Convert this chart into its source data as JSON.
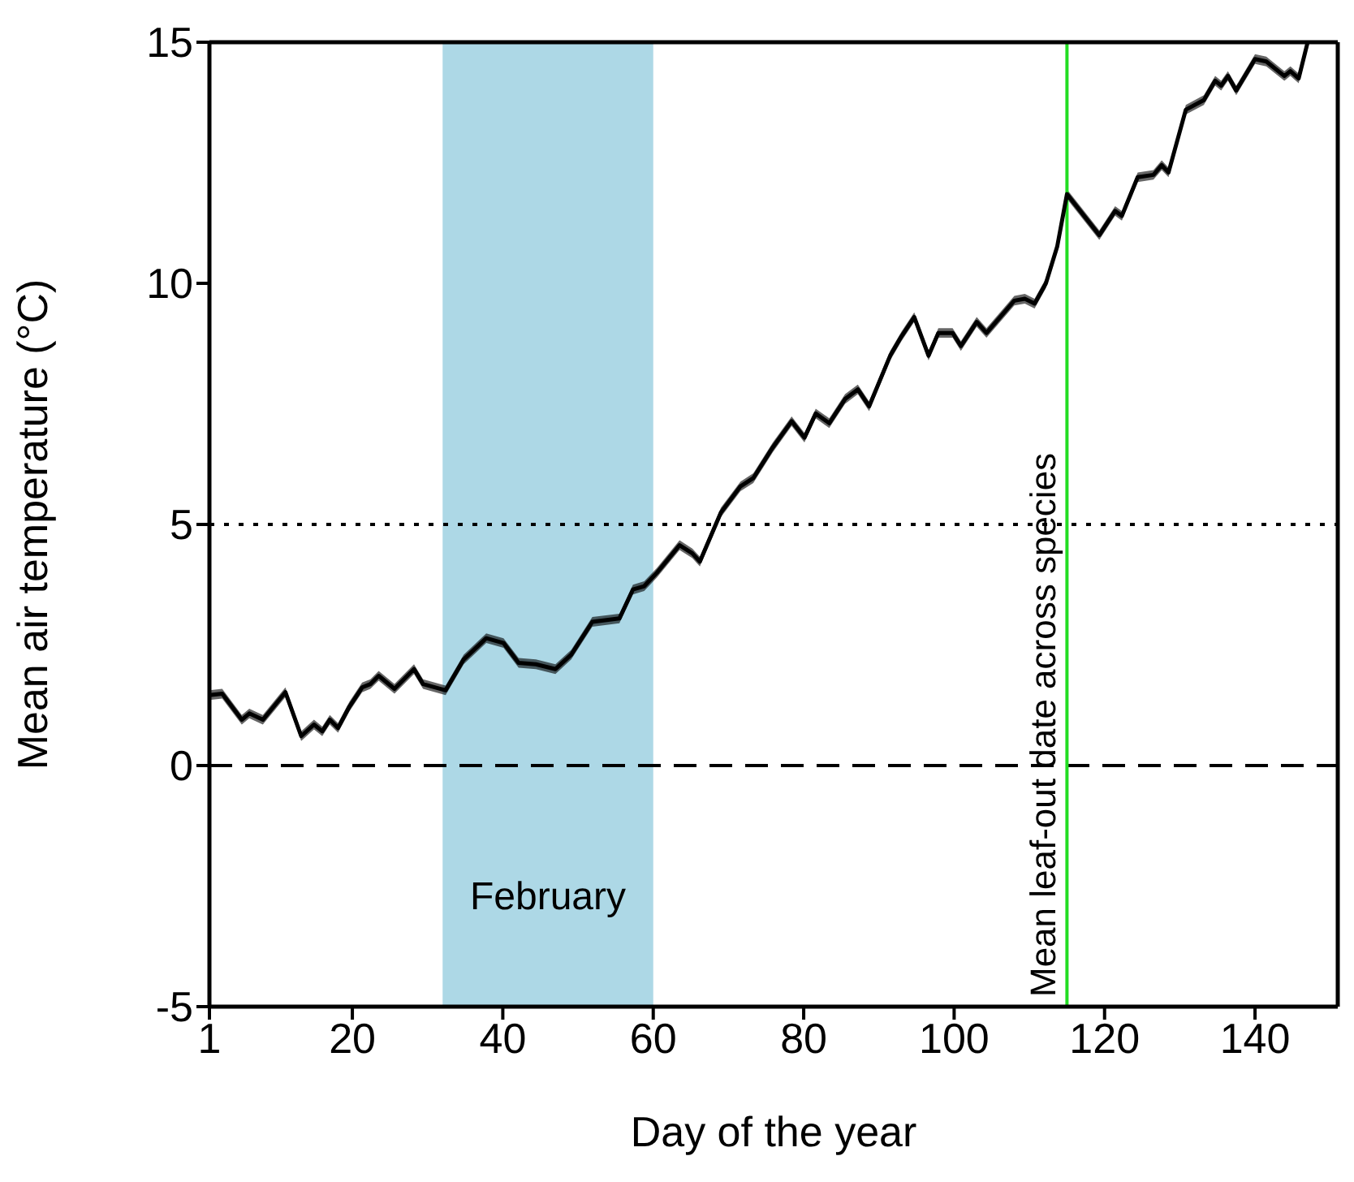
{
  "chart_data": {
    "type": "line",
    "xlabel": "Day of the year",
    "ylabel": "Mean air temperature (°C)",
    "x": [
      1,
      2.7,
      5.3,
      6.3,
      8.1,
      11.1,
      13.2,
      14.9,
      16,
      17,
      18.1,
      19.6,
      21.3,
      22.4,
      23.5,
      25.6,
      28.2,
      29.4,
      32.4,
      34.8,
      37.8,
      40.1,
      42.1,
      44.4,
      47,
      49.1,
      51.9,
      55.5,
      57.3,
      58.8,
      60.5,
      63.5,
      65.2,
      66.2,
      69,
      71.6,
      73.3,
      75.9,
      78.4,
      80.1,
      81.6,
      83.4,
      85.5,
      87.2,
      88.7,
      91.5,
      93,
      94.7,
      96.6,
      97.9,
      99.8,
      100.9,
      103,
      104.3,
      108,
      109.4,
      110.7,
      112.2,
      113.7,
      115,
      119.3,
      121.4,
      122.3,
      124.4,
      126.5,
      127.6,
      128.5,
      130.8,
      133.2,
      134.7,
      135.5,
      136.4,
      137.5,
      140,
      141.5,
      143.9,
      144.7,
      145.8,
      147
    ],
    "series": [
      {
        "color": "#000000",
        "line_style": "solid",
        "values": [
          1.46,
          1.49,
          0.95,
          1.08,
          0.95,
          1.52,
          0.61,
          0.85,
          0.71,
          0.95,
          0.78,
          1.22,
          1.62,
          1.69,
          1.86,
          1.59,
          2.0,
          1.69,
          1.56,
          2.2,
          2.64,
          2.54,
          2.13,
          2.1,
          2.0,
          2.3,
          2.98,
          3.05,
          3.65,
          3.72,
          4.0,
          4.57,
          4.4,
          4.23,
          5.25,
          5.79,
          5.96,
          6.6,
          7.14,
          6.8,
          7.3,
          7.1,
          7.6,
          7.8,
          7.45,
          8.5,
          8.9,
          9.3,
          8.5,
          8.97,
          8.97,
          8.7,
          9.2,
          8.97,
          9.64,
          9.68,
          9.58,
          10.0,
          10.76,
          11.85,
          11.0,
          11.5,
          11.4,
          12.2,
          12.25,
          12.45,
          12.3,
          13.6,
          13.8,
          14.2,
          14.1,
          14.3,
          14.0,
          14.65,
          14.6,
          14.3,
          14.4,
          14.25,
          15.0
        ],
        "lower": [
          1.36,
          1.39,
          0.85,
          0.98,
          0.85,
          1.42,
          0.51,
          0.75,
          0.61,
          0.85,
          0.68,
          1.12,
          1.52,
          1.59,
          1.76,
          1.49,
          1.9,
          1.59,
          1.46,
          2.1,
          2.54,
          2.44,
          2.03,
          2.0,
          1.9,
          2.2,
          2.88,
          2.95,
          3.55,
          3.62,
          3.9,
          4.47,
          4.3,
          4.13,
          5.15,
          5.69,
          5.86,
          6.5,
          7.04,
          6.7,
          7.2,
          7.0,
          7.5,
          7.7,
          7.35,
          8.4,
          8.8,
          9.2,
          8.4,
          8.87,
          8.87,
          8.6,
          9.1,
          8.87,
          9.54,
          9.58,
          9.48,
          9.9,
          10.66,
          11.75,
          10.9,
          11.4,
          11.3,
          12.1,
          12.15,
          12.35,
          12.2,
          13.5,
          13.7,
          14.1,
          14.0,
          14.2,
          13.9,
          14.55,
          14.5,
          14.2,
          14.3,
          14.15,
          14.9
        ],
        "upper": [
          1.56,
          1.59,
          1.05,
          1.18,
          1.05,
          1.62,
          0.71,
          0.95,
          0.81,
          1.05,
          0.88,
          1.32,
          1.72,
          1.79,
          1.96,
          1.69,
          2.1,
          1.79,
          1.66,
          2.3,
          2.74,
          2.64,
          2.23,
          2.2,
          2.1,
          2.4,
          3.08,
          3.15,
          3.75,
          3.82,
          4.1,
          4.67,
          4.5,
          4.33,
          5.35,
          5.89,
          6.06,
          6.7,
          7.24,
          6.9,
          7.4,
          7.2,
          7.7,
          7.9,
          7.55,
          8.6,
          9.0,
          9.4,
          8.6,
          9.07,
          9.07,
          8.8,
          9.3,
          9.07,
          9.74,
          9.78,
          9.68,
          10.1,
          10.86,
          11.95,
          11.1,
          11.6,
          11.5,
          12.3,
          12.35,
          12.55,
          12.4,
          13.7,
          13.9,
          14.3,
          14.2,
          14.4,
          14.1,
          14.75,
          14.7,
          14.4,
          14.5,
          14.35,
          15.0
        ]
      }
    ],
    "xlim": [
      1,
      151
    ],
    "xticks": [
      1,
      20,
      40,
      60,
      80,
      100,
      120,
      140
    ],
    "ylim": [
      -5,
      15
    ],
    "yticks": [
      -5,
      0,
      5,
      10,
      15
    ],
    "ref_lines": [
      {
        "axis": "y",
        "value": 5,
        "line_style": "dotted",
        "color": "#000000"
      },
      {
        "axis": "y",
        "value": 0,
        "line_style": "dashed",
        "color": "#000000"
      },
      {
        "axis": "x",
        "value": 115,
        "label": "Mean leaf-out date across species",
        "color": "#22dd22",
        "line_style": "solid"
      }
    ],
    "bands": [
      {
        "axis": "x",
        "from": 32,
        "to": 60,
        "label": "February",
        "color": "#add8e6"
      }
    ]
  }
}
